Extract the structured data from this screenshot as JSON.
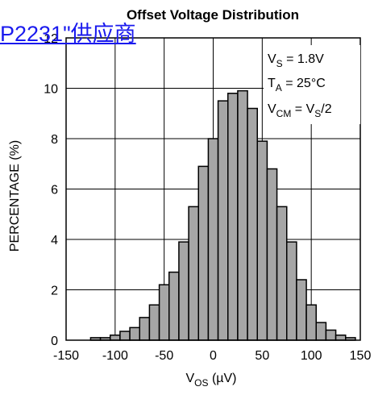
{
  "overlay_link": {
    "text": "P2231\"供应商"
  },
  "chart_data": {
    "type": "bar",
    "title": "Offset Voltage Distribution",
    "xlabel_main": "V",
    "xlabel_sub": "OS",
    "xlabel_unit": " (µV)",
    "ylabel": "PERCENTAGE (%)",
    "xlim": [
      -150,
      150
    ],
    "ylim": [
      0,
      12
    ],
    "x_ticks": [
      "-150",
      "-100",
      "-50",
      "0",
      "50",
      "100",
      "150"
    ],
    "y_ticks": [
      "0",
      "2",
      "4",
      "6",
      "8",
      "10",
      "12"
    ],
    "grid": true,
    "bin_width": 10,
    "bins": [
      {
        "start": -125,
        "value": 0.1
      },
      {
        "start": -115,
        "value": 0.1
      },
      {
        "start": -105,
        "value": 0.2
      },
      {
        "start": -95,
        "value": 0.35
      },
      {
        "start": -85,
        "value": 0.5
      },
      {
        "start": -75,
        "value": 0.9
      },
      {
        "start": -65,
        "value": 1.4
      },
      {
        "start": -55,
        "value": 2.2
      },
      {
        "start": -45,
        "value": 2.7
      },
      {
        "start": -35,
        "value": 3.9
      },
      {
        "start": -25,
        "value": 5.3
      },
      {
        "start": -15,
        "value": 6.9
      },
      {
        "start": -5,
        "value": 8.0
      },
      {
        "start": 5,
        "value": 9.5
      },
      {
        "start": 15,
        "value": 9.8
      },
      {
        "start": 25,
        "value": 9.9
      },
      {
        "start": 35,
        "value": 9.2
      },
      {
        "start": 45,
        "value": 7.9
      },
      {
        "start": 55,
        "value": 6.8
      },
      {
        "start": 65,
        "value": 5.3
      },
      {
        "start": 75,
        "value": 3.9
      },
      {
        "start": 85,
        "value": 2.4
      },
      {
        "start": 95,
        "value": 1.4
      },
      {
        "start": 105,
        "value": 0.7
      },
      {
        "start": 115,
        "value": 0.4
      },
      {
        "start": 125,
        "value": 0.2
      },
      {
        "start": 135,
        "value": 0.1
      }
    ],
    "conditions": [
      {
        "main": "V",
        "sub": "S",
        "rest": " = 1.8V"
      },
      {
        "main": "T",
        "sub": "A",
        "rest": " = 25°C"
      },
      {
        "main": "V",
        "sub": "CM",
        "rest": " = V",
        "sub2": "S",
        "rest2": "/2"
      }
    ],
    "colors": {
      "bar_fill": "#a6a6a6",
      "bar_stroke": "#000000",
      "grid": "#000000",
      "link": "#1a1aee"
    }
  }
}
